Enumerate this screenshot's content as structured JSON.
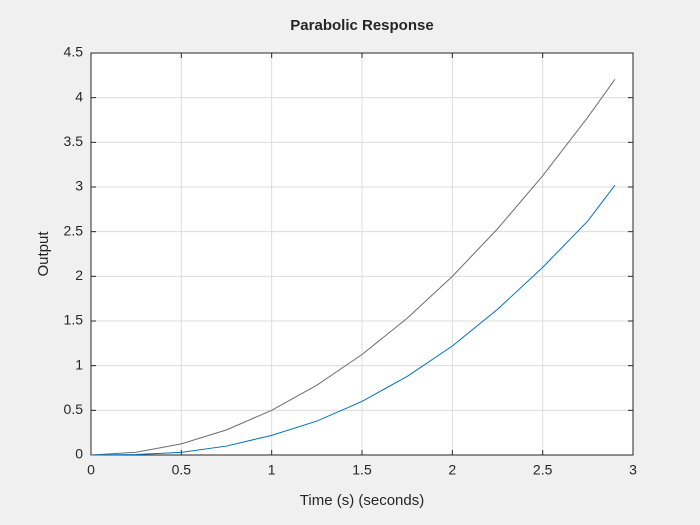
{
  "chart_data": {
    "type": "line",
    "title": "Parabolic Response",
    "x_label": "Time (s) (seconds)",
    "y_label": "Output",
    "x": [
      0,
      0.25,
      0.5,
      0.75,
      1,
      1.25,
      1.5,
      1.75,
      2,
      2.25,
      2.5,
      2.75,
      2.9
    ],
    "series": [
      {
        "color": "#6e6e6e",
        "values": [
          0,
          0.03125,
          0.125,
          0.28125,
          0.5,
          0.78125,
          1.125,
          1.53125,
          2,
          2.53125,
          3.125,
          3.78125,
          4.205
        ]
      },
      {
        "color": "#0072bd",
        "values": [
          0,
          0.005,
          0.03,
          0.1,
          0.22,
          0.38,
          0.6,
          0.88,
          1.22,
          1.63,
          2.1,
          2.62,
          3.02
        ]
      }
    ],
    "xlim": [
      0,
      3
    ],
    "xticks": [
      0,
      0.5,
      1,
      1.5,
      2,
      2.5,
      3
    ],
    "ylim": [
      0,
      4.5
    ],
    "yticks": [
      0,
      0.5,
      1,
      1.5,
      2,
      2.5,
      3,
      3.5,
      4,
      4.5
    ],
    "grid": true
  }
}
